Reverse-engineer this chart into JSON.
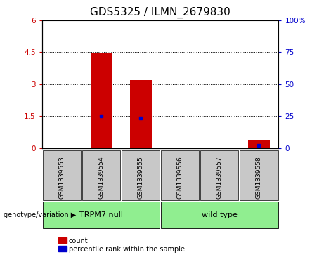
{
  "title": "GDS5325 / ILMN_2679830",
  "categories": [
    "GSM1339553",
    "GSM1339554",
    "GSM1339555",
    "GSM1339556",
    "GSM1339557",
    "GSM1339558"
  ],
  "red_bar_values": [
    0,
    4.45,
    3.18,
    0,
    0,
    0.35
  ],
  "blue_dot_values": [
    null,
    1.5,
    1.42,
    null,
    null,
    0.12
  ],
  "left_ylim": [
    0,
    6
  ],
  "right_ylim": [
    0,
    100
  ],
  "left_yticks": [
    0,
    1.5,
    3.0,
    4.5,
    6.0
  ],
  "left_yticklabels": [
    "0",
    "1.5",
    "3",
    "4.5",
    "6"
  ],
  "right_yticks": [
    0,
    25,
    50,
    75,
    100
  ],
  "right_yticklabels": [
    "0",
    "25",
    "50",
    "75",
    "100%"
  ],
  "dotted_gridlines": [
    1.5,
    3.0,
    4.5
  ],
  "groups": [
    {
      "label": "TRPM7 null",
      "indices": [
        0,
        1,
        2
      ],
      "color": "#90EE90"
    },
    {
      "label": "wild type",
      "indices": [
        3,
        4,
        5
      ],
      "color": "#90EE90"
    }
  ],
  "group_row_label": "genotype/variation",
  "legend_items": [
    {
      "label": "count",
      "color": "#CC0000"
    },
    {
      "label": "percentile rank within the sample",
      "color": "#0000CC"
    }
  ],
  "bar_color": "#CC0000",
  "dot_color": "#0000CC",
  "bg_color": "#FFFFFF",
  "cell_bg": "#C8C8C8",
  "title_fontsize": 11,
  "tick_fontsize": 7.5,
  "bar_width": 0.55
}
